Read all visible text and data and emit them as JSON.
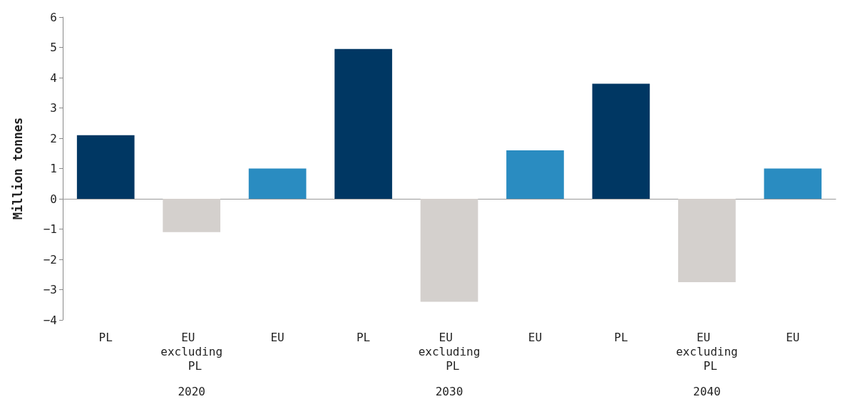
{
  "chart_data": {
    "type": "bar",
    "ylabel": "Million tonnes",
    "categories": [
      "PL",
      "EU excluding PL",
      "EU",
      "PL",
      "EU excluding PL",
      "EU",
      "PL",
      "EU excluding PL",
      "EU"
    ],
    "values": [
      2.1,
      -1.1,
      1.0,
      4.95,
      -3.4,
      1.6,
      3.8,
      -2.75,
      1.0
    ],
    "colors": [
      "#003763",
      "#d4d0cd",
      "#2a8cc1",
      "#003763",
      "#d4d0cd",
      "#2a8cc1",
      "#003763",
      "#d4d0cd",
      "#2a8cc1"
    ],
    "ylim": [
      -4,
      6
    ],
    "yticks": [
      -4,
      -3,
      -2,
      -1,
      0,
      1,
      2,
      3,
      4,
      5,
      6
    ],
    "annotations": [
      "2020",
      "2030",
      "2040"
    ]
  }
}
